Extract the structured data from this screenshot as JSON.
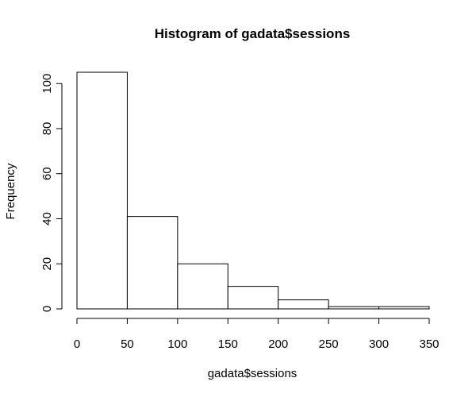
{
  "chart_data": {
    "type": "bar",
    "title": "Histogram of gadata$sessions",
    "xlabel": "gadata$sessions",
    "ylabel": "Frequency",
    "bins": [
      {
        "from": 0,
        "to": 50,
        "count": 105
      },
      {
        "from": 50,
        "to": 100,
        "count": 41
      },
      {
        "from": 100,
        "to": 150,
        "count": 20
      },
      {
        "from": 150,
        "to": 200,
        "count": 10
      },
      {
        "from": 200,
        "to": 250,
        "count": 4
      },
      {
        "from": 250,
        "to": 300,
        "count": 1
      },
      {
        "from": 300,
        "to": 350,
        "count": 1
      }
    ],
    "xticks": [
      0,
      50,
      100,
      150,
      200,
      250,
      300,
      350
    ],
    "yticks": [
      0,
      20,
      40,
      60,
      80,
      100
    ],
    "xlim": [
      0,
      350
    ],
    "ylim": [
      0,
      105
    ],
    "grid": false,
    "legend": "none"
  }
}
